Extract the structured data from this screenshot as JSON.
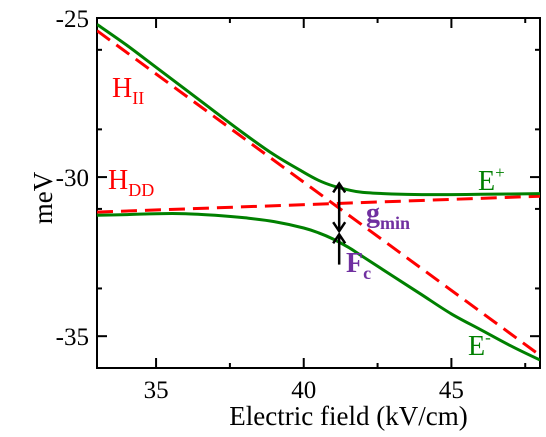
{
  "chart_data": {
    "type": "line",
    "xlabel": "Electric field (kV/cm)",
    "ylabel": "meV",
    "xlim": [
      33,
      48
    ],
    "ylim": [
      -36,
      -25
    ],
    "xticks": [
      35,
      40,
      45
    ],
    "yticks": [
      -25,
      -30,
      -35
    ],
    "grid": false,
    "series": [
      {
        "name": "H_II",
        "style": "dashed",
        "color": "#ff0000",
        "x": [
          33,
          48
        ],
        "y": [
          -25.4,
          -35.6
        ]
      },
      {
        "name": "H_DD",
        "style": "dashed",
        "color": "#ff0000",
        "x": [
          33,
          48
        ],
        "y": [
          -31.1,
          -30.6
        ]
      },
      {
        "name": "E+",
        "style": "solid",
        "color": "#008000",
        "x": [
          33,
          34,
          35,
          36,
          37,
          38,
          39,
          40,
          40.5,
          41,
          41.5,
          42,
          43,
          44,
          45,
          46,
          47,
          48
        ],
        "y": [
          -25.2,
          -25.85,
          -26.55,
          -27.25,
          -27.95,
          -28.65,
          -29.3,
          -29.85,
          -30.1,
          -30.28,
          -30.4,
          -30.48,
          -30.53,
          -30.55,
          -30.55,
          -30.54,
          -30.53,
          -30.52
        ]
      },
      {
        "name": "E-",
        "style": "solid",
        "color": "#008000",
        "x": [
          33,
          34,
          35,
          36,
          37,
          38,
          39,
          40,
          40.5,
          41,
          41.5,
          42,
          43,
          44,
          45,
          46,
          47,
          48
        ],
        "y": [
          -31.2,
          -31.18,
          -31.15,
          -31.15,
          -31.2,
          -31.28,
          -31.4,
          -31.6,
          -31.75,
          -31.95,
          -32.2,
          -32.5,
          -33.1,
          -33.7,
          -34.3,
          -34.8,
          -35.3,
          -35.75
        ]
      }
    ],
    "annotations": {
      "h_ii": {
        "main": "H",
        "sub": "II"
      },
      "h_dd": {
        "main": "H",
        "sub": "DD"
      },
      "e_plus": {
        "main": "E",
        "sup": "+"
      },
      "e_minus": {
        "main": "E",
        "sup": "-"
      },
      "gmin": {
        "main": "g",
        "sub": "min"
      },
      "fc": {
        "main": "F",
        "sub": "c"
      }
    },
    "markers": {
      "gap_arrow_x": 41.2,
      "gap_arrow_y_top": -30.2,
      "gap_arrow_y_bottom": -31.7,
      "fc_arrow_x": 41.2,
      "fc_arrow_y_from": -32.75,
      "fc_arrow_y_to": -31.8
    }
  }
}
